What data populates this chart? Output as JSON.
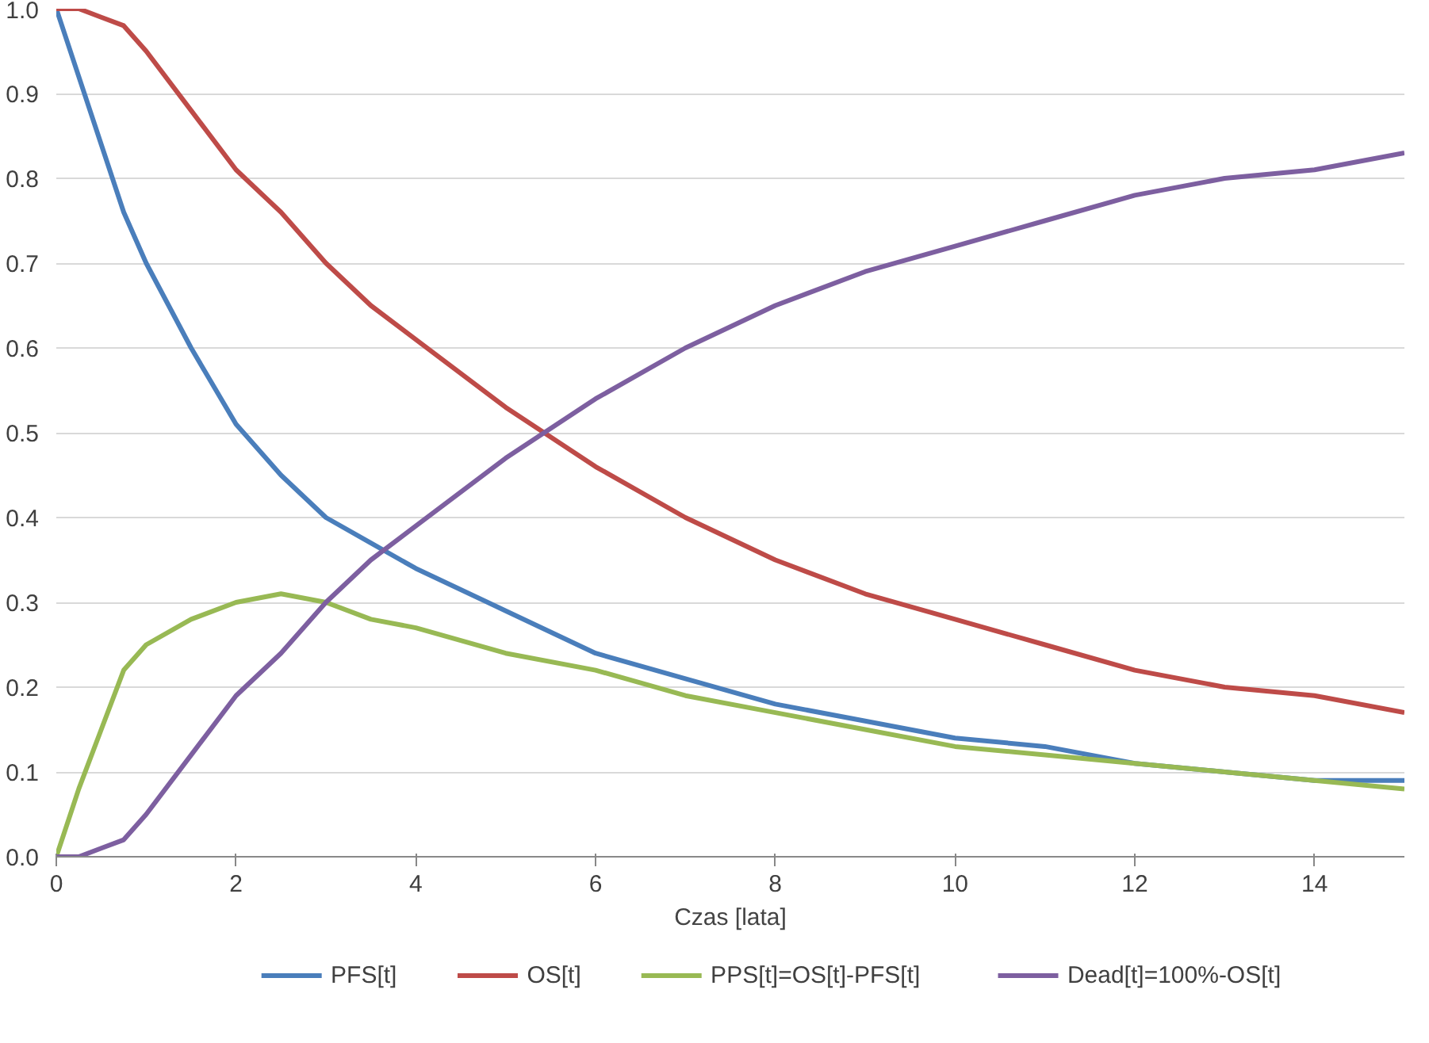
{
  "chart_data": {
    "type": "line",
    "xlabel": "Czas [lata]",
    "x": [
      0,
      0.25,
      0.5,
      0.75,
      1,
      1.5,
      2,
      2.5,
      3,
      3.5,
      4,
      5,
      6,
      7,
      8,
      9,
      10,
      11,
      12,
      13,
      14,
      15
    ],
    "series": [
      {
        "name": "PFS[t]",
        "color": "#4a7ebb",
        "values": [
          1,
          0.92,
          0.84,
          0.76,
          0.7,
          0.6,
          0.51,
          0.45,
          0.4,
          0.37,
          0.34,
          0.29,
          0.24,
          0.21,
          0.18,
          0.16,
          0.14,
          0.13,
          0.11,
          0.1,
          0.09,
          0.09
        ]
      },
      {
        "name": "OS[t]",
        "color": "#be4b48",
        "values": [
          1,
          1,
          0.99,
          0.98,
          0.95,
          0.88,
          0.81,
          0.76,
          0.7,
          0.65,
          0.61,
          0.53,
          0.46,
          0.4,
          0.35,
          0.31,
          0.28,
          0.25,
          0.22,
          0.2,
          0.19,
          0.17
        ]
      },
      {
        "name": "PPS[t]=OS[t]-PFS[t]",
        "color": "#98b954",
        "values": [
          0,
          0.08,
          0.15,
          0.22,
          0.25,
          0.28,
          0.3,
          0.31,
          0.3,
          0.28,
          0.27,
          0.24,
          0.22,
          0.19,
          0.17,
          0.15,
          0.13,
          0.12,
          0.11,
          0.1,
          0.09,
          0.08
        ]
      },
      {
        "name": "Dead[t]=100%-OS[t]",
        "color": "#7d5fa0",
        "values": [
          0,
          0,
          0.01,
          0.02,
          0.05,
          0.12,
          0.19,
          0.24,
          0.3,
          0.35,
          0.39,
          0.47,
          0.54,
          0.6,
          0.65,
          0.69,
          0.72,
          0.75,
          0.78,
          0.8,
          0.81,
          0.83
        ]
      }
    ],
    "xlim": [
      0,
      15
    ],
    "xticks": [
      0,
      2,
      4,
      6,
      8,
      10,
      12,
      14
    ],
    "ylim": [
      0,
      1
    ],
    "yticks": [
      {
        "value": 0,
        "label": "0.0"
      },
      0.1,
      0.2,
      0.3,
      0.4,
      0.5,
      0.6,
      0.7,
      0.8,
      0.9,
      {
        "value": 1,
        "label": "1.0"
      }
    ],
    "grid": "y",
    "legend": "bottom",
    "marker": "none",
    "line_style": "solid"
  }
}
